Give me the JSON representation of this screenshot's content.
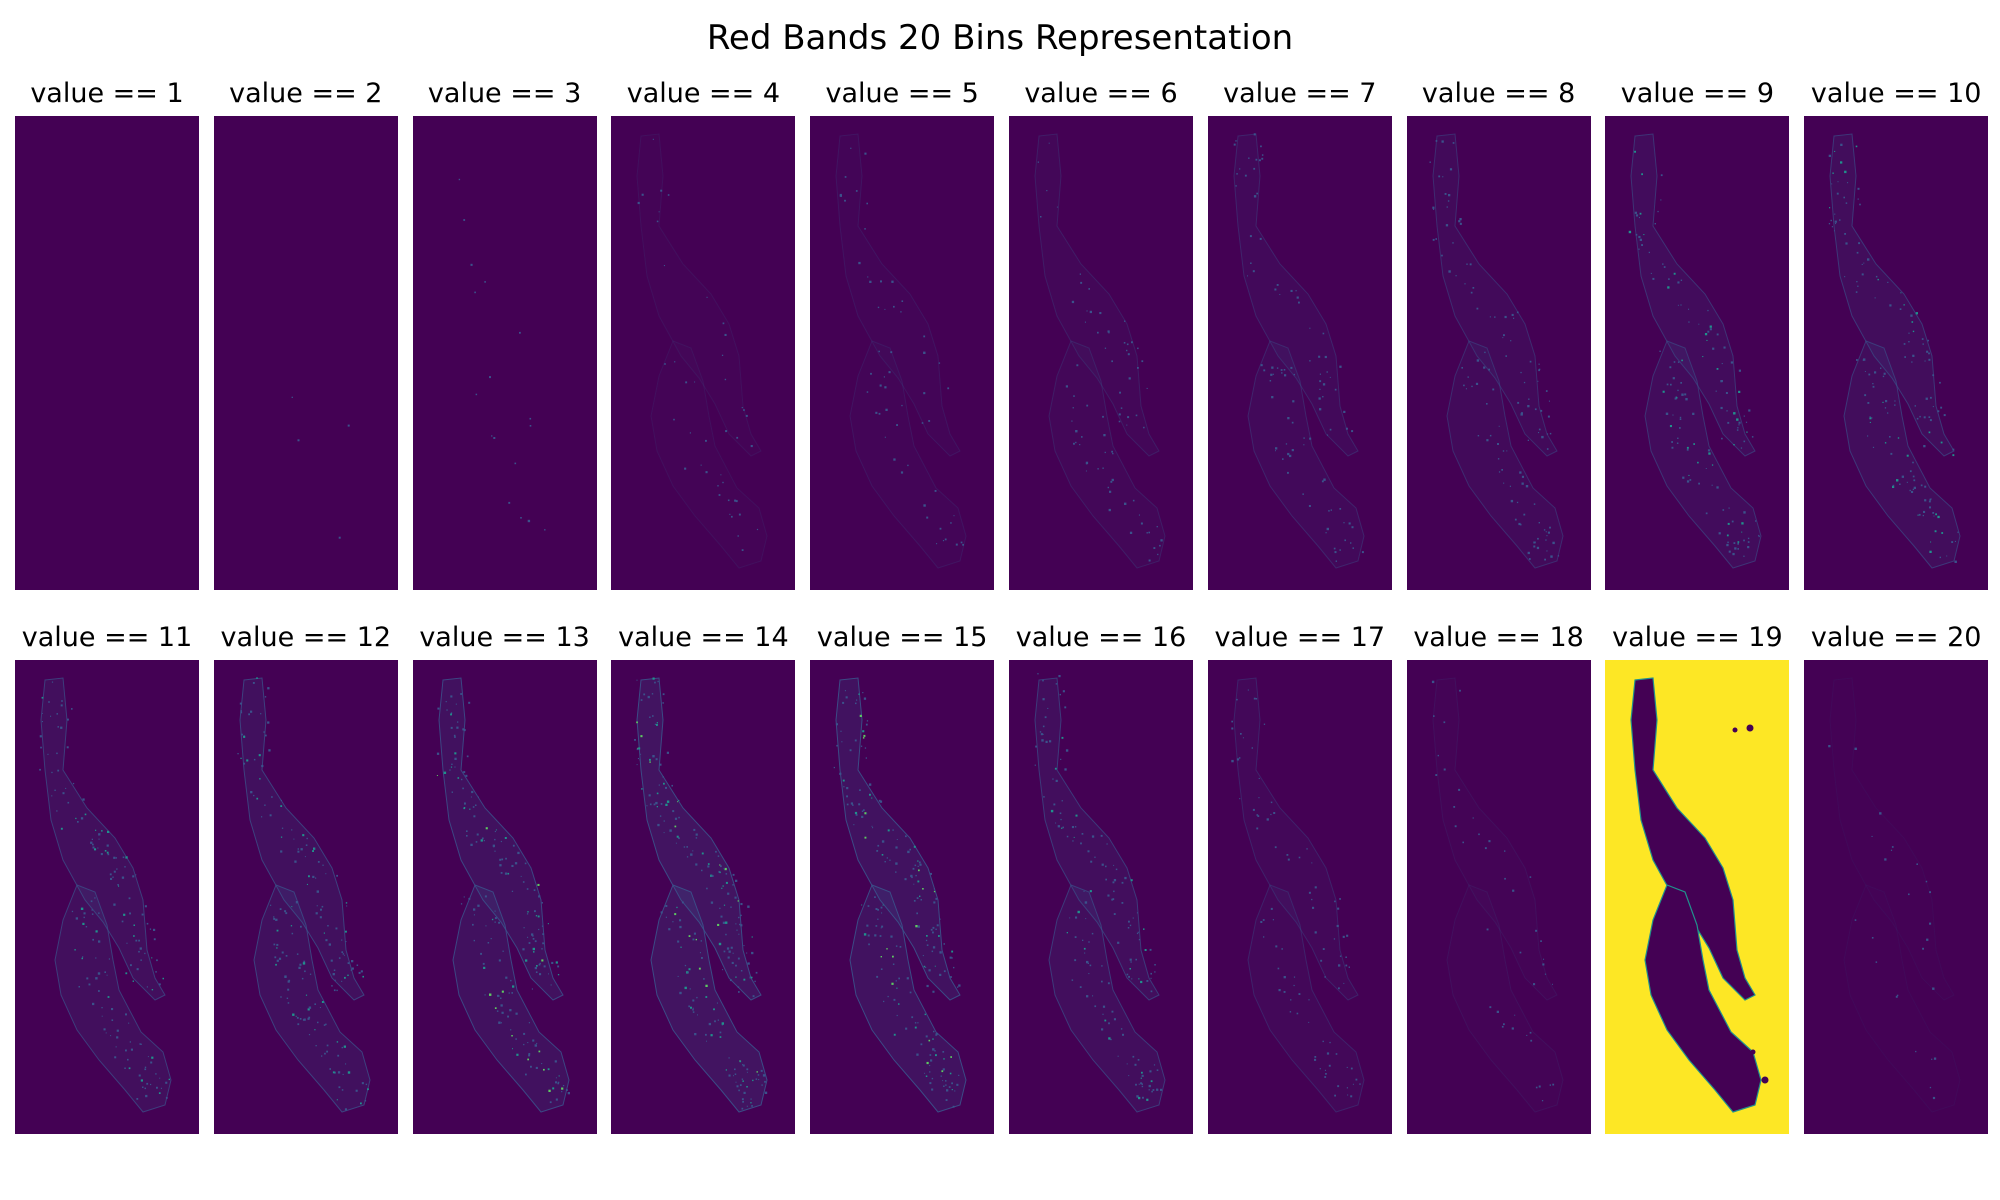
{
  "chart_data": {
    "type": "heatmap",
    "title": "Red Bands 20 Bins Representation",
    "layout": {
      "rows": 2,
      "columns": 10
    },
    "colormap": "viridis",
    "axes": "off",
    "panels": [
      {
        "title": "value == 1",
        "value": 1,
        "coverage": 0.0
      },
      {
        "title": "value == 2",
        "value": 2,
        "coverage": 0.01
      },
      {
        "title": "value == 3",
        "value": 3,
        "coverage": 0.04
      },
      {
        "title": "value == 4",
        "value": 4,
        "coverage": 0.1
      },
      {
        "title": "value == 5",
        "value": 5,
        "coverage": 0.13
      },
      {
        "title": "value == 6",
        "value": 6,
        "coverage": 0.18
      },
      {
        "title": "value == 7",
        "value": 7,
        "coverage": 0.23
      },
      {
        "title": "value == 8",
        "value": 8,
        "coverage": 0.28
      },
      {
        "title": "value == 9",
        "value": 9,
        "coverage": 0.33
      },
      {
        "title": "value == 10",
        "value": 10,
        "coverage": 0.36
      },
      {
        "title": "value == 11",
        "value": 11,
        "coverage": 0.4
      },
      {
        "title": "value == 12",
        "value": 12,
        "coverage": 0.43
      },
      {
        "title": "value == 13",
        "value": 13,
        "coverage": 0.47
      },
      {
        "title": "value == 14",
        "value": 14,
        "coverage": 0.55
      },
      {
        "title": "value == 15",
        "value": 15,
        "coverage": 0.5
      },
      {
        "title": "value == 16",
        "value": 16,
        "coverage": 0.38
      },
      {
        "title": "value == 17",
        "value": 17,
        "coverage": 0.22
      },
      {
        "title": "value == 18",
        "value": 18,
        "coverage": 0.1
      },
      {
        "title": "value == 19",
        "value": 19,
        "coverage": 1.0,
        "background": true
      },
      {
        "title": "value == 20",
        "value": 20,
        "coverage": 0.06
      }
    ],
    "colors": {
      "background": "#440154",
      "low": "#3b528b",
      "mid": "#21918c",
      "high": "#5ec962",
      "max": "#fde725"
    }
  }
}
